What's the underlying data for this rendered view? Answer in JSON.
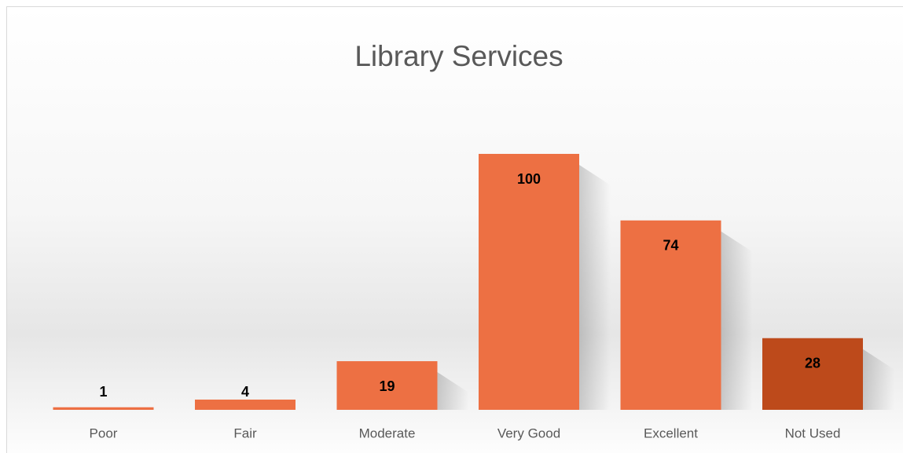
{
  "chart_data": {
    "type": "bar",
    "title": "Library Services",
    "categories": [
      "Poor",
      "Fair",
      "Moderate",
      "Very Good",
      "Excellent",
      "Not Used"
    ],
    "values": [
      1,
      4,
      19,
      100,
      74,
      28
    ],
    "colors": [
      "#ED7043",
      "#ED7043",
      "#ED7043",
      "#ED7043",
      "#ED7043",
      "#BD4A1B"
    ]
  }
}
